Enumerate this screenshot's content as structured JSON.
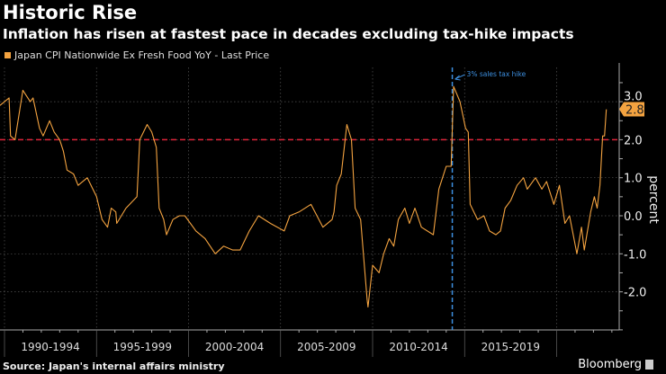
{
  "header": {
    "title": "Historic Rise",
    "subtitle": "Inflation has risen at fastest pace in decades excluding tax-hike impacts"
  },
  "footer": {
    "source": "Source: Japan's internal affairs ministry",
    "brand": "Bloomberg"
  },
  "colors": {
    "series": "#f4a340",
    "threshold": "#e0243a",
    "annotation": "#3d8fe0",
    "grid": "#555555"
  },
  "chart_data": {
    "type": "line",
    "title": "Historic Rise",
    "subtitle": "Inflation has risen at fastest pace in decades excluding tax-hike impacts",
    "ylabel": "percent",
    "xlabel": "",
    "xlim": [
      1989.75,
      2023.2
    ],
    "ylim": [
      -3.0,
      3.9
    ],
    "grid": true,
    "legend_position": "top-left",
    "x_tick_labels": [
      "1990-1994",
      "1995-1999",
      "2000-2004",
      "2005-2009",
      "2010-2014",
      "2015-2019"
    ],
    "x_tick_starts": [
      1990,
      1995,
      2000,
      2005,
      2010,
      2015,
      2020
    ],
    "y_ticks": [
      3.0,
      2.0,
      1.0,
      0.0,
      -1.0,
      -2.0
    ],
    "y_tick_labels": [
      "3.0",
      "2.0",
      "1.0",
      "0.0",
      "-1.0",
      "-2.0"
    ],
    "reference_line": {
      "y": 2.0
    },
    "annotation": {
      "x": 2014.33,
      "text": "3% sales tax hike"
    },
    "last_value_label": "2.8",
    "series": [
      {
        "name": "Japan CPI Nationwide Ex Fresh Food YoY - Last Price",
        "x": [
          1989.75,
          1990.25,
          1990.33,
          1990.57,
          1991.0,
          1991.4,
          1991.55,
          1991.9,
          1992.1,
          1992.45,
          1992.7,
          1993.0,
          1993.2,
          1993.4,
          1993.75,
          1994.0,
          1994.5,
          1995.0,
          1995.3,
          1995.6,
          1995.8,
          1996.05,
          1996.1,
          1996.6,
          1997.2,
          1997.35,
          1997.75,
          1998.0,
          1998.25,
          1998.4,
          1998.65,
          1998.8,
          1999.15,
          1999.5,
          1999.8,
          2000.4,
          2000.9,
          2001.45,
          2001.9,
          2002.4,
          2002.8,
          2003.3,
          2003.8,
          2004.45,
          2005.2,
          2005.5,
          2006.0,
          2006.65,
          2007.3,
          2007.8,
          2007.9,
          2008.05,
          2008.3,
          2008.6,
          2008.85,
          2009.05,
          2009.35,
          2009.7,
          2009.75,
          2010.0,
          2010.35,
          2010.6,
          2010.9,
          2011.15,
          2011.4,
          2011.75,
          2012.0,
          2012.3,
          2012.65,
          2013.3,
          2013.6,
          2014.0,
          2014.27,
          2014.4,
          2014.75,
          2015.05,
          2015.2,
          2015.3,
          2015.7,
          2016.05,
          2016.35,
          2016.7,
          2016.95,
          2017.2,
          2017.5,
          2017.85,
          2018.2,
          2018.4,
          2018.85,
          2019.2,
          2019.45,
          2019.85,
          2020.15,
          2020.45,
          2020.7,
          2021.1,
          2021.35,
          2021.5,
          2021.85,
          2022.05,
          2022.2,
          2022.35,
          2022.5,
          2022.6,
          2022.7
        ],
        "values": [
          2.9,
          3.1,
          2.1,
          2.0,
          3.3,
          3.0,
          3.1,
          2.3,
          2.1,
          2.5,
          2.2,
          2.0,
          1.7,
          1.2,
          1.1,
          0.8,
          1.0,
          0.5,
          -0.1,
          -0.3,
          0.2,
          0.1,
          -0.2,
          0.2,
          0.5,
          2.0,
          2.4,
          2.2,
          1.8,
          0.2,
          -0.1,
          -0.5,
          -0.1,
          0.0,
          0.0,
          -0.4,
          -0.6,
          -1.0,
          -0.8,
          -0.9,
          -0.9,
          -0.4,
          0.0,
          -0.2,
          -0.4,
          0.0,
          0.1,
          0.3,
          -0.3,
          -0.1,
          0.1,
          0.8,
          1.1,
          2.4,
          2.0,
          0.2,
          -0.1,
          -2.2,
          -2.4,
          -1.3,
          -1.5,
          -1.0,
          -0.6,
          -0.8,
          -0.1,
          0.2,
          -0.2,
          0.2,
          -0.3,
          -0.5,
          0.7,
          1.3,
          1.3,
          3.4,
          3.0,
          2.3,
          2.2,
          0.3,
          -0.1,
          0.0,
          -0.4,
          -0.5,
          -0.4,
          0.2,
          0.4,
          0.8,
          1.0,
          0.7,
          1.0,
          0.7,
          0.9,
          0.3,
          0.8,
          -0.2,
          0.0,
          -1.0,
          -0.3,
          -0.9,
          0.1,
          0.5,
          0.2,
          0.8,
          2.1,
          2.1,
          2.8
        ]
      }
    ]
  }
}
